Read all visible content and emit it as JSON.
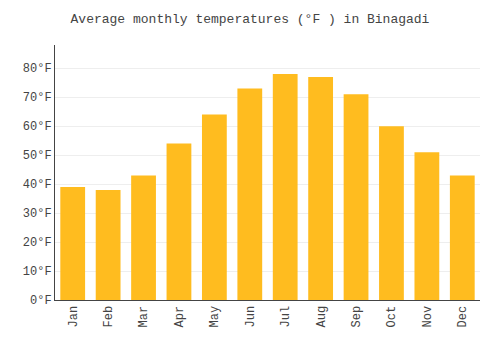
{
  "chart_data": {
    "type": "bar",
    "title": "Average monthly temperatures (°F ) in Binagadi",
    "categories": [
      "Jan",
      "Feb",
      "Mar",
      "Apr",
      "May",
      "Jun",
      "Jul",
      "Aug",
      "Sep",
      "Oct",
      "Nov",
      "Dec"
    ],
    "values": [
      39,
      38,
      43,
      54,
      64,
      73,
      78,
      77,
      71,
      60,
      51,
      43
    ],
    "color": "#FFBC1F",
    "ylim": [
      0,
      88
    ],
    "yticks": [
      {
        "value": 0,
        "label": "0°F"
      },
      {
        "value": 10,
        "label": "10°F"
      },
      {
        "value": 20,
        "label": "20°F"
      },
      {
        "value": 30,
        "label": "30°F"
      },
      {
        "value": 40,
        "label": "40°F"
      },
      {
        "value": 50,
        "label": "50°F"
      },
      {
        "value": 60,
        "label": "60°F"
      },
      {
        "value": 70,
        "label": "70°F"
      },
      {
        "value": 80,
        "label": "80°F"
      }
    ],
    "grid": true
  }
}
